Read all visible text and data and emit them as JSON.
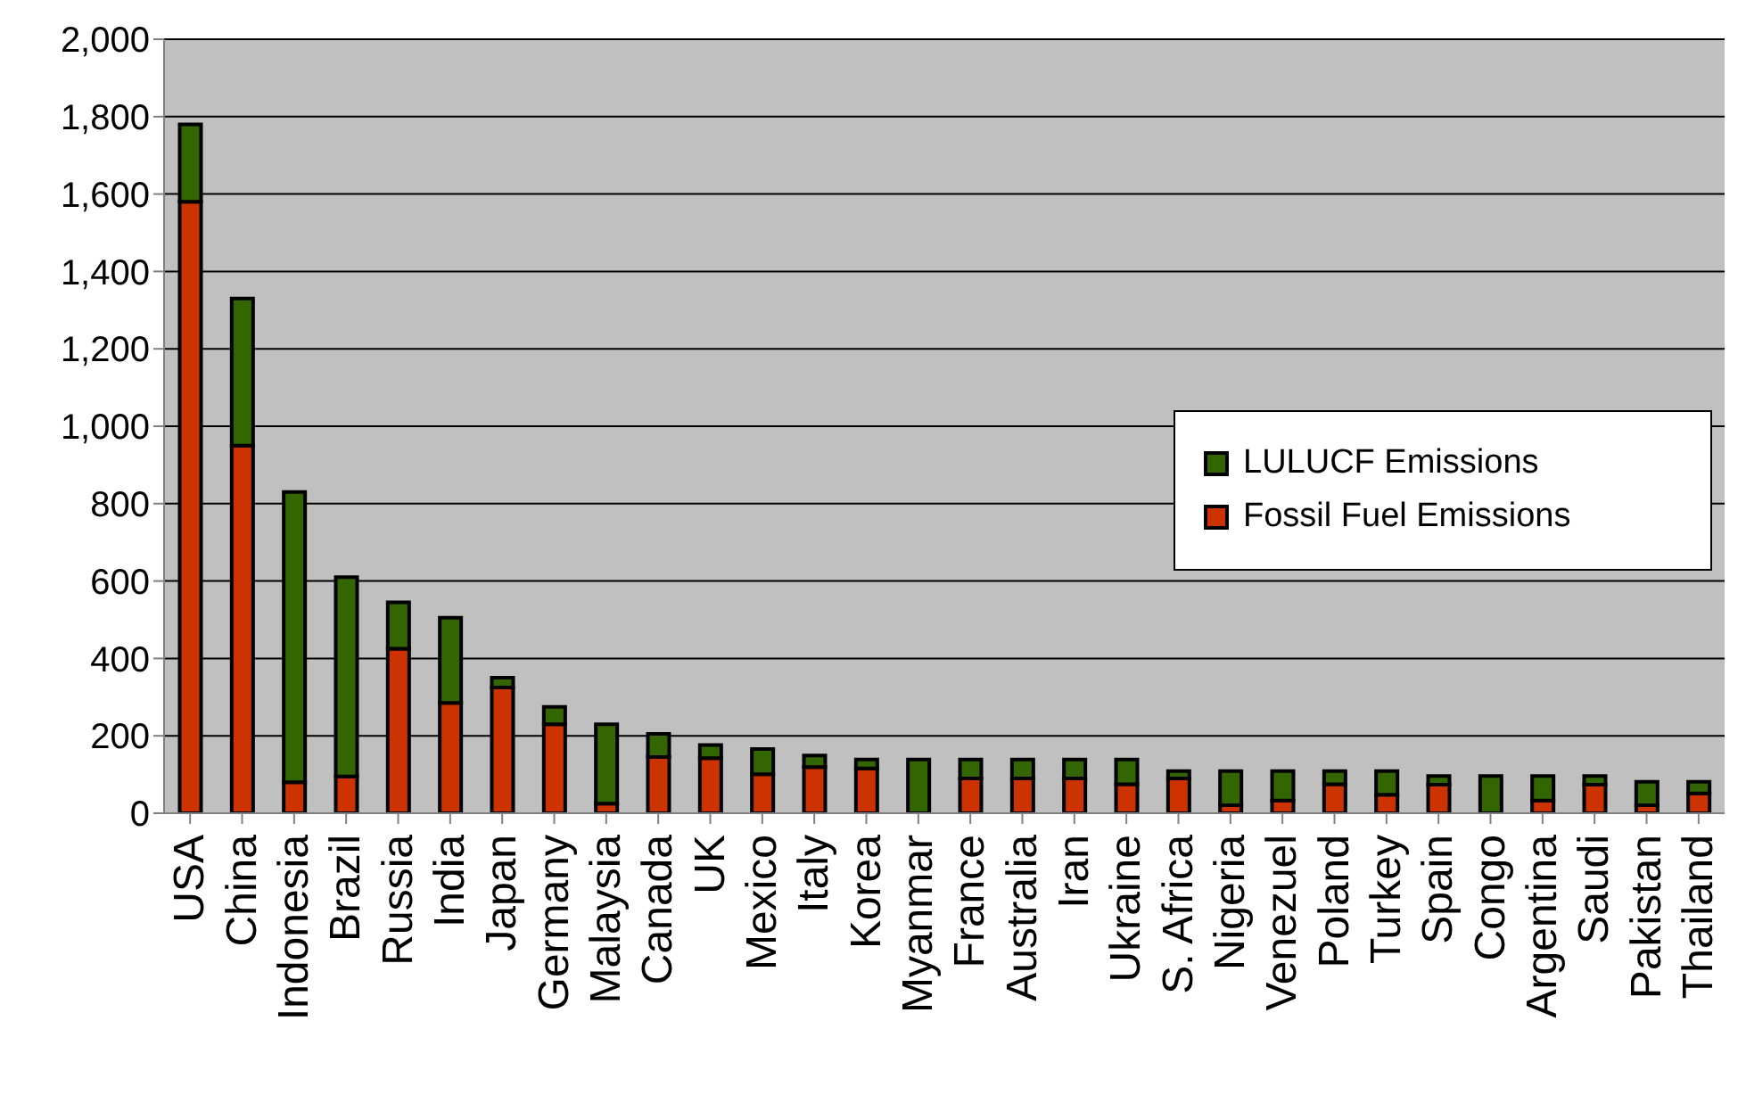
{
  "chart_data": {
    "type": "bar",
    "stacked": true,
    "categories": [
      "USA",
      "China",
      "Indonesia",
      "Brazil",
      "Russia",
      "India",
      "Japan",
      "Germany",
      "Malaysia",
      "Canada",
      "UK",
      "Mexico",
      "Italy",
      "Korea",
      "Myanmar",
      "France",
      "Australia",
      "Iran",
      "Ukraine",
      "S. Africa",
      "Nigeria",
      "Venezuel",
      "Poland",
      "Turkey",
      "Spain",
      "Congo",
      "Argentina",
      "Saudi",
      "Pakistan",
      "Thailand"
    ],
    "series": [
      {
        "name": "Fossil Fuel Emissions",
        "color": "#cc3300",
        "values": [
          1580,
          950,
          80,
          95,
          425,
          285,
          325,
          230,
          25,
          145,
          142,
          101,
          119,
          116,
          0,
          90,
          90,
          90,
          75,
          90,
          21,
          33,
          75,
          48,
          74,
          0,
          33,
          74,
          21,
          51
        ]
      },
      {
        "name": "LULUCF Emissions",
        "color": "#336600",
        "values": [
          200,
          380,
          750,
          515,
          120,
          220,
          25,
          45,
          205,
          60,
          34,
          65,
          30,
          23,
          139,
          49,
          49,
          49,
          64,
          19,
          88,
          76,
          34,
          61,
          22,
          96,
          63,
          22,
          60,
          30
        ]
      }
    ],
    "ylim": [
      0,
      2000
    ],
    "yticks": [
      0,
      200,
      400,
      600,
      800,
      {
        "value": 1000,
        "label": "1,000"
      },
      {
        "value": 1200,
        "label": "1,200"
      },
      {
        "value": 1400,
        "label": "1,400"
      },
      {
        "value": 1600,
        "label": "1,600"
      },
      {
        "value": 1800,
        "label": "1,800"
      },
      {
        "value": 2000,
        "label": "2,000"
      }
    ],
    "grid": "y",
    "legend": "right"
  }
}
